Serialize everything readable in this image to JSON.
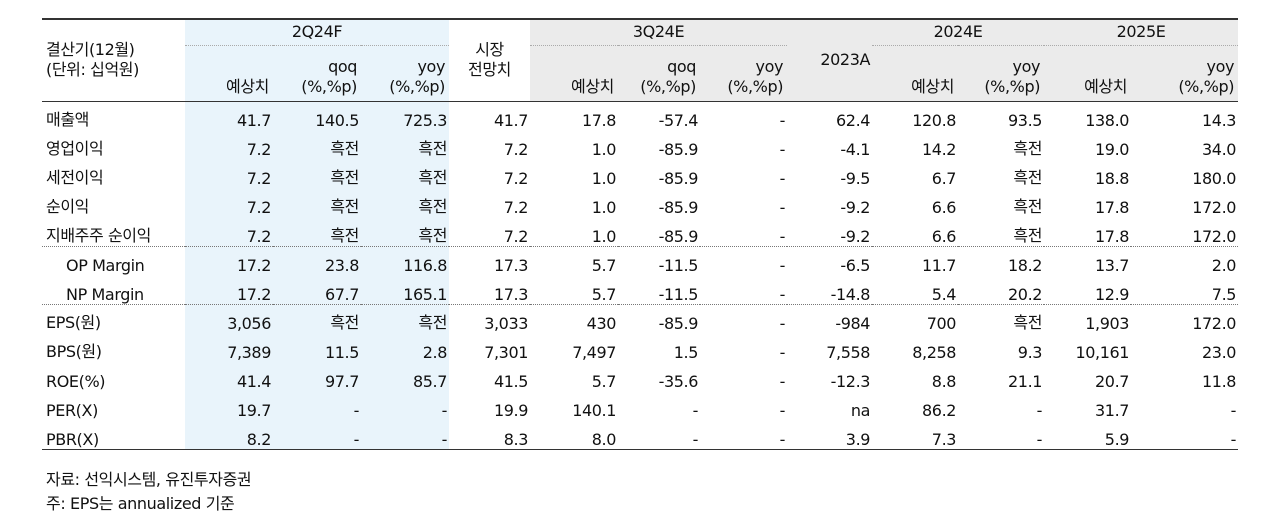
{
  "header": {
    "label_line1": "결산기(12월)",
    "label_line2": "(단위: 십억원)",
    "groups": [
      "2Q24F",
      "3Q24E",
      "2024E",
      "2025E"
    ],
    "market_line1": "시장",
    "market_line2": "전망치",
    "actual": "2023A",
    "estimate": "예상치",
    "qoq": "qoq",
    "yoy": "yoy",
    "unit": "(%,%p)"
  },
  "rows": [
    {
      "label": "매출액",
      "cells": [
        "41.7",
        "140.5",
        "725.3",
        "41.7",
        "17.8",
        "-57.4",
        "-",
        "62.4",
        "120.8",
        "93.5",
        "138.0",
        "14.3"
      ]
    },
    {
      "label": "영업이익",
      "cells": [
        "7.2",
        "흑전",
        "흑전",
        "7.2",
        "1.0",
        "-85.9",
        "-",
        "-4.1",
        "14.2",
        "흑전",
        "19.0",
        "34.0"
      ]
    },
    {
      "label": "세전이익",
      "cells": [
        "7.2",
        "흑전",
        "흑전",
        "7.2",
        "1.0",
        "-85.9",
        "-",
        "-9.5",
        "6.7",
        "흑전",
        "18.8",
        "180.0"
      ]
    },
    {
      "label": "순이익",
      "cells": [
        "7.2",
        "흑전",
        "흑전",
        "7.2",
        "1.0",
        "-85.9",
        "-",
        "-9.2",
        "6.6",
        "흑전",
        "17.8",
        "172.0"
      ]
    },
    {
      "label": "지배주주 순이익",
      "cells": [
        "7.2",
        "흑전",
        "흑전",
        "7.2",
        "1.0",
        "-85.9",
        "-",
        "-9.2",
        "6.6",
        "흑전",
        "17.8",
        "172.0"
      ]
    },
    {
      "label": "OP Margin",
      "cells": [
        "17.2",
        "23.8",
        "116.8",
        "17.3",
        "5.7",
        "-11.5",
        "-",
        "-6.5",
        "11.7",
        "18.2",
        "13.7",
        "2.0"
      ]
    },
    {
      "label": "NP Margin",
      "cells": [
        "17.2",
        "67.7",
        "165.1",
        "17.3",
        "5.7",
        "-11.5",
        "-",
        "-14.8",
        "5.4",
        "20.2",
        "12.9",
        "7.5"
      ]
    },
    {
      "label": "EPS(원)",
      "cells": [
        "3,056",
        "흑전",
        "흑전",
        "3,033",
        "430",
        "-85.9",
        "-",
        "-984",
        "700",
        "흑전",
        "1,903",
        "172.0"
      ]
    },
    {
      "label": "BPS(원)",
      "cells": [
        "7,389",
        "11.5",
        "2.8",
        "7,301",
        "7,497",
        "1.5",
        "-",
        "7,558",
        "8,258",
        "9.3",
        "10,161",
        "23.0"
      ]
    },
    {
      "label": "ROE(%)",
      "cells": [
        "41.4",
        "97.7",
        "85.7",
        "41.5",
        "5.7",
        "-35.6",
        "-",
        "-12.3",
        "8.8",
        "21.1",
        "20.7",
        "11.8"
      ]
    },
    {
      "label": "PER(X)",
      "cells": [
        "19.7",
        "-",
        "-",
        "19.9",
        "140.1",
        "-",
        "-",
        "na",
        "86.2",
        "-",
        "31.7",
        "-"
      ]
    },
    {
      "label": "PBR(X)",
      "cells": [
        "8.2",
        "-",
        "-",
        "8.3",
        "8.0",
        "-",
        "-",
        "3.9",
        "7.3",
        "-",
        "5.9",
        "-"
      ]
    }
  ],
  "notes": [
    "자료: 선익시스템, 유진투자증권",
    "주: EPS는 annualized 기준"
  ],
  "colors": {
    "highlight": "#e9f4fb",
    "header_gray": "#ebebeb",
    "rule": "#333333"
  }
}
